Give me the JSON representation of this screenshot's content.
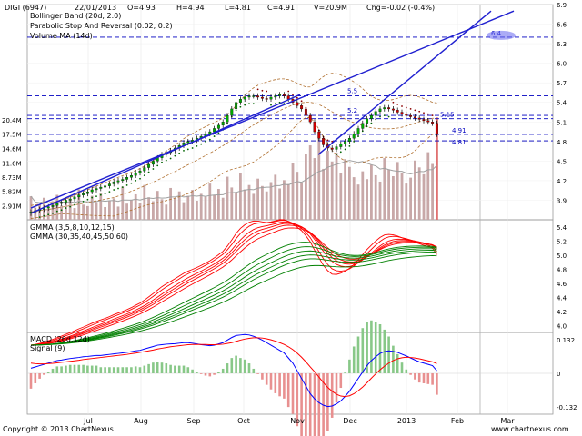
{
  "header": {
    "symbol": "DIGI (6947)",
    "date": "22/01/2013",
    "open": "O=4.93",
    "high": "H=4.94",
    "low": "L=4.81",
    "close": "C=4.91",
    "volume": "V=20.9M",
    "change": "Chg=-0.02 (-0.4%)"
  },
  "legends": {
    "price": [
      "Bollinger Band (20d, 2.0)",
      "Parabolic Stop And Reversal (0.02, 0.2)",
      "Volume MA (14d)"
    ],
    "gmma": [
      "GMMA (3,5,8,10,12,15)",
      "GMMA (30,35,40,45,50,60)"
    ],
    "macd": [
      "MACD (26d,12d)",
      "Signal (9)"
    ]
  },
  "footer": {
    "copyright": "Copyright © 2013 ChartNexus",
    "website": "www.chartnexus.com"
  },
  "colors": {
    "up_candle": "#00aa00",
    "down_candle": "#cc0000",
    "volume_bar": "#c8a8a8",
    "bollinger": "#b07030",
    "sar": "#8b0000",
    "trendline": "#2020d0",
    "volume_ma": "#a0a0a0",
    "gmma_short": "#ff0000",
    "gmma_long": "#008000",
    "macd": "#0000ff",
    "signal": "#ff0000",
    "hist_up": "#88c888",
    "hist_down": "#e89090",
    "level_line": "#0000c0"
  },
  "chart_data": {
    "type": "line",
    "x_axis": {
      "labels": [
        "Jul",
        "Aug",
        "Sep",
        "Oct",
        "Nov",
        "Dec",
        "2013",
        "Feb",
        "Mar"
      ]
    },
    "price_axis": {
      "ticks": [
        "6.9",
        "6.6",
        "6.3",
        "6.0",
        "5.7",
        "5.4",
        "5.1",
        "4.8",
        "4.5",
        "4.2",
        "3.9"
      ],
      "range": [
        3.6,
        6.9
      ]
    },
    "volume_axis": {
      "ticks": [
        "20.4M",
        "17.5M",
        "14.6M",
        "11.6M",
        "8.73M",
        "5.82M",
        "2.91M"
      ],
      "max": 20.4
    },
    "gmma_axis": {
      "ticks": [
        "5.4",
        "5.2",
        "5.0",
        "4.8",
        "4.6",
        "4.4",
        "4.2",
        "4.0"
      ],
      "range": [
        3.9,
        5.5
      ]
    },
    "macd_axis": {
      "ticks": [
        "0.132",
        "0",
        "-0.132"
      ],
      "range": [
        -0.16,
        0.16
      ]
    },
    "level_lines": [
      {
        "value": 6.4,
        "label": "6.4"
      },
      {
        "value": 5.5,
        "label": "5.5"
      },
      {
        "value": 5.2,
        "label": "5.2"
      },
      {
        "value": 5.15,
        "label": "5.15"
      },
      {
        "value": 4.91,
        "label": "4.91"
      },
      {
        "value": 4.81,
        "label": "4.81"
      }
    ],
    "close": [
      3.72,
      3.74,
      3.76,
      3.78,
      3.8,
      3.82,
      3.85,
      3.87,
      3.9,
      3.92,
      3.95,
      3.98,
      4.0,
      4.03,
      4.06,
      4.08,
      4.1,
      4.12,
      4.15,
      4.18,
      4.2,
      4.22,
      4.25,
      4.28,
      4.32,
      4.35,
      4.4,
      4.45,
      4.5,
      4.55,
      4.6,
      4.63,
      4.66,
      4.7,
      4.74,
      4.78,
      4.8,
      4.82,
      4.85,
      4.88,
      4.92,
      4.95,
      5.0,
      5.05,
      5.1,
      5.2,
      5.3,
      5.4,
      5.45,
      5.48,
      5.5,
      5.5,
      5.48,
      5.46,
      5.45,
      5.48,
      5.5,
      5.52,
      5.5,
      5.45,
      5.4,
      5.35,
      5.3,
      5.2,
      5.1,
      4.95,
      4.85,
      4.75,
      4.7,
      4.68,
      4.72,
      4.76,
      4.8,
      4.85,
      4.92,
      5.0,
      5.08,
      5.15,
      5.2,
      5.26,
      5.3,
      5.32,
      5.3,
      5.28,
      5.25,
      5.22,
      5.2,
      5.18,
      5.16,
      5.14,
      5.12,
      5.1,
      5.08,
      4.91
    ],
    "volume": [
      4.8,
      2.5,
      3.2,
      4.5,
      2.2,
      3.8,
      5.1,
      2.9,
      3.5,
      4.2,
      2.4,
      6.2,
      3.1,
      2.8,
      4.9,
      3.6,
      5.5,
      2.6,
      3.9,
      4.4,
      2.7,
      6.8,
      3.3,
      4.1,
      5.2,
      3.5,
      7.1,
      4.6,
      3.8,
      5.9,
      4.2,
      3.1,
      6.5,
      4.4,
      5.8,
      3.6,
      4.9,
      6.1,
      3.9,
      5.3,
      4.7,
      7.4,
      5.1,
      6.3,
      4.5,
      8.8,
      6.6,
      5.4,
      9.5,
      6.2,
      7.1,
      5.3,
      8.4,
      6.9,
      5.8,
      7.7,
      9.2,
      6.4,
      8.1,
      7.3,
      11.5,
      9.8,
      7.6,
      13.4,
      15.2,
      12.6,
      16.8,
      10.4,
      14.1,
      11.9,
      13.7,
      9.6,
      12.4,
      10.8,
      8.7,
      7.2,
      9.9,
      8.3,
      11.2,
      9.1,
      7.8,
      12.6,
      10.3,
      8.9,
      11.8,
      9.5,
      7.4,
      8.6,
      12.1,
      10.7,
      9.3,
      13.8,
      11.4,
      20.9
    ],
    "macd": [
      0.02,
      0.025,
      0.03,
      0.035,
      0.04,
      0.045,
      0.05,
      0.052,
      0.055,
      0.058,
      0.06,
      0.062,
      0.065,
      0.066,
      0.068,
      0.07,
      0.07,
      0.072,
      0.074,
      0.076,
      0.078,
      0.08,
      0.082,
      0.085,
      0.088,
      0.09,
      0.095,
      0.1,
      0.105,
      0.11,
      0.112,
      0.114,
      0.115,
      0.116,
      0.118,
      0.12,
      0.12,
      0.118,
      0.115,
      0.112,
      0.11,
      0.108,
      0.11,
      0.115,
      0.12,
      0.13,
      0.14,
      0.148,
      0.15,
      0.152,
      0.15,
      0.145,
      0.138,
      0.13,
      0.12,
      0.11,
      0.1,
      0.09,
      0.08,
      0.06,
      0.04,
      0.01,
      -0.02,
      -0.05,
      -0.08,
      -0.1,
      -0.115,
      -0.125,
      -0.13,
      -0.128,
      -0.12,
      -0.108,
      -0.09,
      -0.07,
      -0.045,
      -0.02,
      0.005,
      0.03,
      0.05,
      0.065,
      0.078,
      0.085,
      0.088,
      0.086,
      0.082,
      0.075,
      0.068,
      0.06,
      0.052,
      0.045,
      0.04,
      0.035,
      0.03,
      0.01
    ],
    "signal": [
      0.04,
      0.038,
      0.037,
      0.037,
      0.038,
      0.039,
      0.041,
      0.043,
      0.045,
      0.047,
      0.049,
      0.051,
      0.054,
      0.056,
      0.058,
      0.06,
      0.062,
      0.064,
      0.066,
      0.068,
      0.07,
      0.072,
      0.074,
      0.077,
      0.079,
      0.082,
      0.085,
      0.088,
      0.091,
      0.095,
      0.098,
      0.101,
      0.104,
      0.106,
      0.108,
      0.11,
      0.112,
      0.113,
      0.113,
      0.113,
      0.113,
      0.112,
      0.112,
      0.113,
      0.114,
      0.117,
      0.12,
      0.125,
      0.13,
      0.134,
      0.137,
      0.139,
      0.139,
      0.138,
      0.135,
      0.131,
      0.126,
      0.12,
      0.113,
      0.104,
      0.093,
      0.079,
      0.063,
      0.045,
      0.025,
      0.006,
      -0.015,
      -0.036,
      -0.055,
      -0.07,
      -0.082,
      -0.089,
      -0.091,
      -0.088,
      -0.08,
      -0.068,
      -0.054,
      -0.037,
      -0.019,
      -0.002,
      0.014,
      0.028,
      0.04,
      0.05,
      0.057,
      0.061,
      0.063,
      0.062,
      0.06,
      0.057,
      0.053,
      0.049,
      0.045,
      0.038
    ]
  }
}
